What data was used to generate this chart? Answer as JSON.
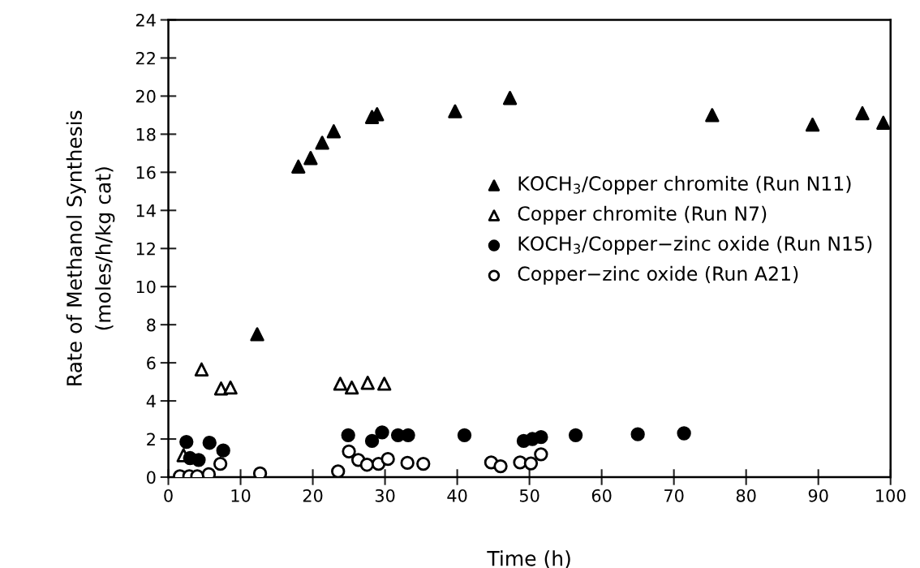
{
  "chart_data": {
    "type": "scatter",
    "xlabel": "Time (h)",
    "ylabel": "Rate of Methanol Synthesis\n(moles/h/kg cat)",
    "xlim": [
      0,
      100
    ],
    "xticks": [
      0,
      10,
      20,
      30,
      40,
      50,
      60,
      70,
      80,
      90,
      100
    ],
    "ylim": [
      0,
      24
    ],
    "yticks": [
      0,
      2,
      4,
      6,
      8,
      10,
      12,
      14,
      16,
      18,
      20,
      22,
      24
    ],
    "grid": false,
    "legend": "right",
    "series": [
      {
        "name": "KOCH$_{3}$/Copper chromite (Run N11)",
        "color": "#000000",
        "marker": "triangle",
        "x": [
          12.3,
          18.0,
          19.7,
          21.3,
          22.9,
          28.2,
          28.9,
          39.7,
          47.3,
          75.3,
          89.2,
          96.1,
          99.0
        ],
        "values": [
          7.5,
          16.3,
          16.75,
          17.55,
          18.15,
          18.9,
          19.05,
          19.2,
          19.9,
          19.0,
          18.5,
          19.1,
          18.6
        ]
      },
      {
        "name": "Copper chromite (Run N7)",
        "color": "#ffffff",
        "marker": "triangle",
        "x": [
          2.1,
          4.6,
          7.3,
          8.6,
          23.8,
          25.4,
          27.6,
          29.9
        ],
        "values": [
          1.15,
          5.65,
          4.65,
          4.7,
          4.9,
          4.7,
          4.95,
          4.9
        ]
      },
      {
        "name": "KOCH$_{3}$/Copper−zinc oxide (Run N15)",
        "color": "#000000",
        "marker": "circle",
        "x": [
          2.5,
          3.0,
          4.2,
          5.7,
          7.6,
          24.9,
          28.2,
          29.6,
          31.8,
          33.2,
          41.0,
          49.2,
          50.4,
          51.6,
          56.4,
          65.0,
          71.4
        ],
        "values": [
          1.85,
          1.0,
          0.9,
          1.8,
          1.4,
          2.2,
          1.9,
          2.35,
          2.2,
          2.2,
          2.2,
          1.9,
          2.0,
          2.1,
          2.2,
          2.25,
          2.3
        ]
      },
      {
        "name": "Copper−zinc oxide (Run A21)",
        "color": "#ffffff",
        "marker": "circle",
        "x": [
          1.6,
          2.9,
          4.0,
          4.9,
          5.6,
          7.2,
          12.7,
          23.5,
          25.0,
          26.3,
          27.5,
          29.1,
          30.4,
          33.1,
          35.3,
          44.7,
          46.0,
          48.7,
          50.2,
          51.6
        ],
        "values": [
          0.05,
          0.05,
          0.05,
          null,
          0.15,
          0.7,
          0.2,
          0.3,
          1.35,
          0.9,
          0.65,
          0.7,
          0.95,
          0.75,
          0.7,
          0.77,
          0.57,
          0.77,
          0.72,
          1.2
        ]
      }
    ]
  }
}
